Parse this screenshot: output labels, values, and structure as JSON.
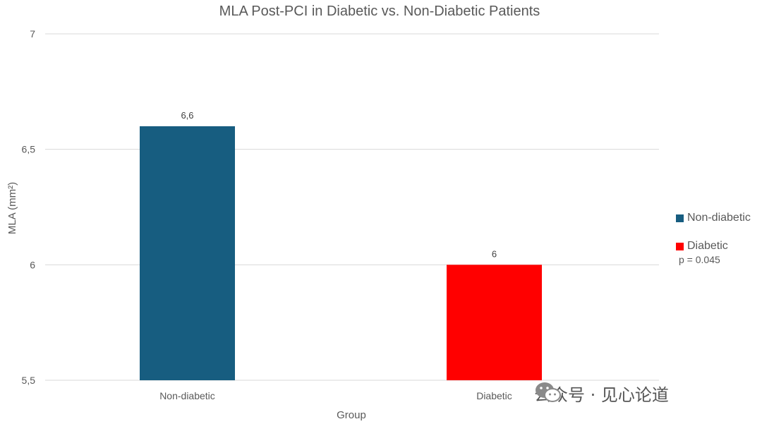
{
  "chart_data": {
    "type": "bar",
    "title": "MLA Post-PCI in Diabetic vs. Non-Diabetic Patients",
    "xlabel": "Group",
    "ylabel": "MLA (mm²)",
    "categories": [
      "Non-diabetic",
      "Diabetic"
    ],
    "values": [
      6.6,
      6.0
    ],
    "value_labels": [
      "6,6",
      "6"
    ],
    "colors": [
      "#175d80",
      "#ff0000"
    ],
    "ylim": [
      5.5,
      7
    ],
    "yticks": [
      5.5,
      6,
      6.5,
      7
    ],
    "ytick_labels": [
      "5,5",
      "6",
      "6,5",
      "7"
    ],
    "grid": true,
    "legend_position": "right",
    "legend": [
      {
        "label": "Non-diabetic",
        "color": "#175d80"
      },
      {
        "label": "Diabetic",
        "color": "#ff0000"
      }
    ],
    "annotation": "p = 0.045"
  },
  "watermark": {
    "icon": "wechat-icon",
    "text": "公众号 · 见心论道"
  }
}
